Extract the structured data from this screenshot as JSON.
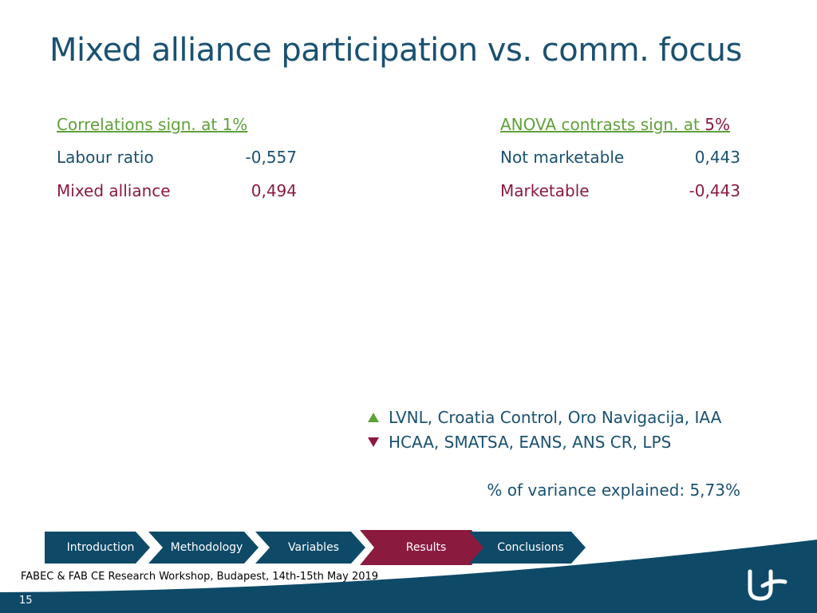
{
  "slide": {
    "title": "Mixed alliance participation vs. comm. focus",
    "correlations": {
      "heading": "Correlations sign. at 1%",
      "rows": [
        {
          "label": "Labour ratio",
          "value": "-0,557"
        },
        {
          "label": "Mixed alliance",
          "value": "0,494"
        }
      ]
    },
    "anova": {
      "heading_prefix": "ANOVA contrasts sign. at ",
      "heading_suffix": "5%",
      "rows": [
        {
          "label": "Not marketable",
          "value": "0,443"
        },
        {
          "label": "Marketable",
          "value": "-0,443"
        }
      ]
    },
    "legend": {
      "up": "LVNL, Croatia Control, Oro Navigacija, IAA",
      "down": "HCAA, SMATSA, EANS, ANS CR, LPS"
    },
    "variance": "% of variance explained: 5,73%"
  },
  "nav": {
    "items": [
      {
        "label": "Introduction"
      },
      {
        "label": "Methodology"
      },
      {
        "label": "Variables"
      },
      {
        "label": "Results"
      },
      {
        "label": "Conclusions"
      }
    ],
    "active_index": 3
  },
  "footer": {
    "text": "FABEC & FAB CE Research Workshop, Budapest, 14th-15th May 2019",
    "page_number": "15"
  },
  "colors": {
    "title": "#1a5171",
    "green": "#5fa13a",
    "crimson": "#8b1a3f",
    "navy": "#0e4a68",
    "nav_active": "#8b1a3f"
  },
  "icons": {
    "logo": "stylized-u-logo-icon",
    "up": "triangle-up-icon",
    "down": "triangle-down-icon"
  }
}
